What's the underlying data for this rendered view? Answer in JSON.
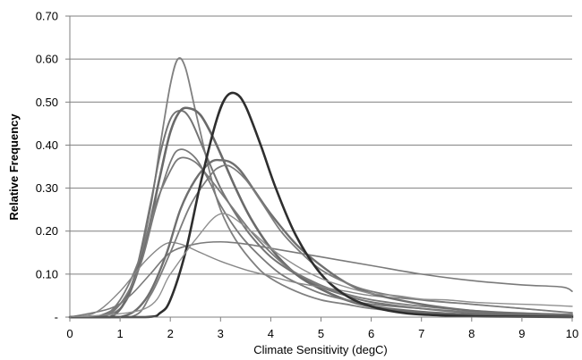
{
  "chart_data": {
    "type": "line",
    "title": "",
    "xlabel": "Climate Sensitivity (degC)",
    "ylabel": "Relative Frequency",
    "xlim": [
      0,
      10
    ],
    "ylim": [
      0,
      0.7
    ],
    "x_ticks": [
      "0",
      "1",
      "2",
      "3",
      "4",
      "5",
      "6",
      "7",
      "8",
      "9",
      "10"
    ],
    "y_ticks": [
      "-",
      "0.10",
      "0.20",
      "0.30",
      "0.40",
      "0.50",
      "0.60",
      "0.70"
    ],
    "grid": true,
    "legend": "none",
    "series": [
      {
        "color": "#808080",
        "width": 1.8,
        "x": [
          0,
          0.5,
          1.0,
          1.3,
          1.6,
          1.8,
          2.0,
          2.15,
          2.3,
          2.5,
          2.8,
          3.0,
          3.3,
          3.7,
          4.0,
          4.5,
          5.0,
          5.5,
          6.0,
          7.0,
          8.0,
          9.0,
          10.0
        ],
        "y": [
          0,
          0,
          0.02,
          0.09,
          0.25,
          0.4,
          0.54,
          0.6,
          0.58,
          0.48,
          0.33,
          0.25,
          0.18,
          0.12,
          0.09,
          0.06,
          0.04,
          0.03,
          0.02,
          0.01,
          0.005,
          0.003,
          0.002
        ]
      },
      {
        "color": "#747474",
        "width": 2.0,
        "x": [
          0,
          0.5,
          1.0,
          1.3,
          1.6,
          1.8,
          2.0,
          2.2,
          2.4,
          2.7,
          3.0,
          3.3,
          3.6,
          4.0,
          4.5,
          5.0,
          5.5,
          6.0,
          7.0,
          8.0,
          9.0,
          10.0
        ],
        "y": [
          0,
          0,
          0.03,
          0.1,
          0.26,
          0.38,
          0.46,
          0.48,
          0.46,
          0.38,
          0.3,
          0.24,
          0.19,
          0.14,
          0.1,
          0.07,
          0.05,
          0.035,
          0.02,
          0.01,
          0.006,
          0.004
        ]
      },
      {
        "color": "#6a6a6a",
        "width": 2.6,
        "x": [
          0,
          0.8,
          1.2,
          1.5,
          1.8,
          2.0,
          2.2,
          2.4,
          2.6,
          2.8,
          3.0,
          3.3,
          3.6,
          4.0,
          4.5,
          5.0,
          5.5,
          6.0,
          7.0,
          8.0,
          9.0,
          10.0
        ],
        "y": [
          0,
          0,
          0.06,
          0.17,
          0.33,
          0.43,
          0.48,
          0.485,
          0.47,
          0.43,
          0.38,
          0.3,
          0.23,
          0.16,
          0.1,
          0.065,
          0.04,
          0.025,
          0.012,
          0.006,
          0.004,
          0.003
        ]
      },
      {
        "color": "#7a7a7a",
        "width": 1.8,
        "x": [
          0,
          0.6,
          1.0,
          1.4,
          1.7,
          2.0,
          2.2,
          2.5,
          2.8,
          3.0,
          3.4,
          3.8,
          4.2,
          4.6,
          5.0,
          5.5,
          6.0,
          7.0,
          8.0,
          9.0,
          10.0
        ],
        "y": [
          0,
          0,
          0.03,
          0.12,
          0.25,
          0.36,
          0.39,
          0.37,
          0.31,
          0.26,
          0.19,
          0.14,
          0.1,
          0.075,
          0.055,
          0.04,
          0.03,
          0.02,
          0.012,
          0.008,
          0.005
        ]
      },
      {
        "color": "#7a7a7a",
        "width": 1.8,
        "x": [
          0,
          0.6,
          1.0,
          1.4,
          1.7,
          2.0,
          2.2,
          2.5,
          2.8,
          3.2,
          3.6,
          4.0,
          4.4,
          4.8,
          5.2,
          5.8,
          6.5,
          7.5,
          8.5,
          10.0
        ],
        "y": [
          0,
          0,
          0.04,
          0.14,
          0.26,
          0.34,
          0.37,
          0.36,
          0.32,
          0.26,
          0.2,
          0.15,
          0.11,
          0.085,
          0.065,
          0.045,
          0.032,
          0.02,
          0.012,
          0.006
        ]
      },
      {
        "color": "#7a7a7a",
        "width": 1.6,
        "x": [
          0,
          0.8,
          1.2,
          1.6,
          2.0,
          2.5,
          3.0,
          3.5,
          4.0,
          5.0,
          6.0,
          7.0,
          8.0,
          9.0,
          9.8,
          10.0
        ],
        "y": [
          0,
          0.02,
          0.05,
          0.1,
          0.15,
          0.17,
          0.175,
          0.17,
          0.16,
          0.14,
          0.12,
          0.1,
          0.085,
          0.075,
          0.07,
          0.06
        ]
      },
      {
        "color": "#868686",
        "width": 1.4,
        "x": [
          0,
          0.5,
          1.0,
          1.5,
          1.9,
          2.2,
          2.6,
          3.0,
          3.5,
          4.0,
          4.5,
          5.0,
          5.5,
          6.0,
          7.0,
          8.0,
          9.0,
          10.0
        ],
        "y": [
          0,
          0.01,
          0.06,
          0.13,
          0.17,
          0.17,
          0.15,
          0.13,
          0.11,
          0.095,
          0.08,
          0.07,
          0.06,
          0.05,
          0.04,
          0.03,
          0.02,
          0.01
        ]
      },
      {
        "color": "#6f6f6f",
        "width": 2.4,
        "x": [
          0,
          1.0,
          1.5,
          1.9,
          2.2,
          2.5,
          2.8,
          3.0,
          3.2,
          3.4,
          3.7,
          4.0,
          4.5,
          5.0,
          5.5,
          6.0,
          7.0,
          8.0,
          9.0,
          10.0
        ],
        "y": [
          0,
          0,
          0.04,
          0.14,
          0.25,
          0.32,
          0.36,
          0.365,
          0.36,
          0.34,
          0.29,
          0.24,
          0.17,
          0.12,
          0.08,
          0.055,
          0.03,
          0.015,
          0.008,
          0.005
        ]
      },
      {
        "color": "#7c7c7c",
        "width": 1.8,
        "x": [
          0,
          1.2,
          1.6,
          2.0,
          2.4,
          2.8,
          3.0,
          3.2,
          3.5,
          3.8,
          4.2,
          4.6,
          5.0,
          5.5,
          6.0,
          7.0,
          8.0,
          9.0,
          10.0
        ],
        "y": [
          0,
          0,
          0.05,
          0.15,
          0.26,
          0.33,
          0.35,
          0.35,
          0.32,
          0.27,
          0.2,
          0.15,
          0.11,
          0.08,
          0.06,
          0.04,
          0.03,
          0.02,
          0.01
        ]
      },
      {
        "color": "#2e2e2e",
        "width": 2.6,
        "x": [
          0,
          1.5,
          1.8,
          2.0,
          2.3,
          2.6,
          2.9,
          3.1,
          3.3,
          3.5,
          3.8,
          4.1,
          4.5,
          5.0,
          5.5,
          6.0,
          6.5,
          7.0,
          8.0,
          9.0,
          10.0
        ],
        "y": [
          0,
          0,
          0.01,
          0.04,
          0.15,
          0.31,
          0.45,
          0.51,
          0.52,
          0.49,
          0.4,
          0.3,
          0.19,
          0.1,
          0.05,
          0.025,
          0.012,
          0.006,
          0.002,
          0.001,
          0
        ]
      },
      {
        "color": "#909090",
        "width": 1.4,
        "x": [
          0,
          1.5,
          2.0,
          2.5,
          3.0,
          3.5,
          4.0,
          4.5,
          5.0,
          5.5,
          6.0,
          6.5,
          7.0,
          7.5,
          8.0,
          8.5,
          9.0,
          9.5,
          10.0
        ],
        "y": [
          0,
          0.02,
          0.1,
          0.18,
          0.24,
          0.21,
          0.16,
          0.12,
          0.09,
          0.07,
          0.055,
          0.05,
          0.042,
          0.04,
          0.035,
          0.032,
          0.03,
          0.028,
          0.025
        ]
      }
    ]
  }
}
